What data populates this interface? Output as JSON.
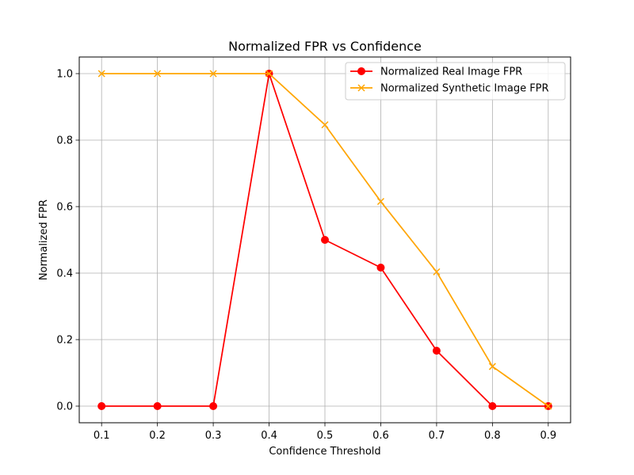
{
  "chart_data": {
    "type": "line",
    "title": "Normalized FPR vs Confidence",
    "xlabel": "Confidence Threshold",
    "ylabel": "Normalized FPR",
    "x": [
      0.1,
      0.2,
      0.3,
      0.4,
      0.5,
      0.6,
      0.7,
      0.8,
      0.9
    ],
    "x_tick_labels": [
      "0.1",
      "0.2",
      "0.3",
      "0.4",
      "0.5",
      "0.6",
      "0.7",
      "0.8",
      "0.9"
    ],
    "y_ticks": [
      0.0,
      0.2,
      0.4,
      0.6,
      0.8,
      1.0
    ],
    "y_tick_labels": [
      "0.0",
      "0.2",
      "0.4",
      "0.6",
      "0.8",
      "1.0"
    ],
    "xlim": [
      0.06,
      0.94
    ],
    "ylim": [
      -0.05,
      1.05
    ],
    "grid": true,
    "legend_position": "top-right",
    "series": [
      {
        "name": "Normalized Real Image FPR",
        "color": "#ff0000",
        "marker": "circle",
        "values": [
          0.0,
          0.0,
          0.0,
          1.0,
          0.5,
          0.4167,
          0.1667,
          0.0,
          0.0
        ]
      },
      {
        "name": "Normalized Synthetic Image FPR",
        "color": "#ffa500",
        "marker": "x",
        "values": [
          1.0,
          1.0,
          1.0,
          1.0,
          0.8462,
          0.6154,
          0.4038,
          0.1192,
          0.0
        ]
      }
    ]
  }
}
